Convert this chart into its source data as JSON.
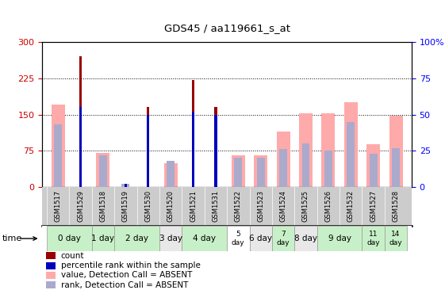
{
  "title": "GDS45 / aa119661_s_at",
  "samples": [
    "GSM1517",
    "GSM1529",
    "GSM1518",
    "GSM1519",
    "GSM1530",
    "GSM1520",
    "GSM1521",
    "GSM1531",
    "GSM1522",
    "GSM1523",
    "GSM1524",
    "GSM1525",
    "GSM1526",
    "GSM1532",
    "GSM1527",
    "GSM1528"
  ],
  "time_labels": [
    {
      "label": "0 day",
      "indices": [
        0,
        1
      ],
      "bg": "#c8f0c8"
    },
    {
      "label": "1 day",
      "indices": [
        2
      ],
      "bg": "#c8f0c8"
    },
    {
      "label": "2 day",
      "indices": [
        3,
        4
      ],
      "bg": "#c8f0c8"
    },
    {
      "label": "3 day",
      "indices": [
        5
      ],
      "bg": "#e8e8e8"
    },
    {
      "label": "4 day",
      "indices": [
        6,
        7
      ],
      "bg": "#c8f0c8"
    },
    {
      "label": "5\nday",
      "indices": [
        8
      ],
      "bg": "#ffffff"
    },
    {
      "label": "6 day",
      "indices": [
        9
      ],
      "bg": "#e8e8e8"
    },
    {
      "label": "7\nday",
      "indices": [
        10
      ],
      "bg": "#c8f0c8"
    },
    {
      "label": "8 day",
      "indices": [
        11
      ],
      "bg": "#e8e8e8"
    },
    {
      "label": "9 day",
      "indices": [
        12,
        13
      ],
      "bg": "#c8f0c8"
    },
    {
      "label": "11\nday",
      "indices": [
        14
      ],
      "bg": "#c8f0c8"
    },
    {
      "label": "14\nday",
      "indices": [
        15
      ],
      "bg": "#c8f0c8"
    }
  ],
  "count_values": [
    0,
    270,
    0,
    0,
    165,
    0,
    222,
    165,
    0,
    0,
    0,
    0,
    0,
    0,
    0,
    0
  ],
  "rank_values": [
    0,
    55,
    0,
    2,
    50,
    0,
    52,
    50,
    0,
    0,
    0,
    0,
    0,
    0,
    0,
    0
  ],
  "value_absent": [
    170,
    0,
    70,
    0,
    0,
    50,
    0,
    0,
    65,
    65,
    115,
    152,
    152,
    175,
    88,
    148
  ],
  "rank_absent": [
    43,
    0,
    22,
    2,
    0,
    18,
    0,
    0,
    20,
    20,
    26,
    30,
    25,
    45,
    23,
    27
  ],
  "wide_bar_width": 0.6,
  "narrow_bar_width": 0.12,
  "med_bar_width": 0.35,
  "ylim_left": [
    0,
    300
  ],
  "ylim_right": [
    0,
    100
  ],
  "yticks_left": [
    0,
    75,
    150,
    225,
    300
  ],
  "yticks_right": [
    0,
    25,
    50,
    75,
    100
  ],
  "color_count": "#990000",
  "color_rank": "#0000bb",
  "color_absent_value": "#ffaaaa",
  "color_absent_rank": "#aaaacc",
  "bg_sample_row": "#cccccc",
  "legend_items": [
    {
      "color": "#990000",
      "label": "count"
    },
    {
      "color": "#0000bb",
      "label": "percentile rank within the sample"
    },
    {
      "color": "#ffaaaa",
      "label": "value, Detection Call = ABSENT"
    },
    {
      "color": "#aaaacc",
      "label": "rank, Detection Call = ABSENT"
    }
  ]
}
